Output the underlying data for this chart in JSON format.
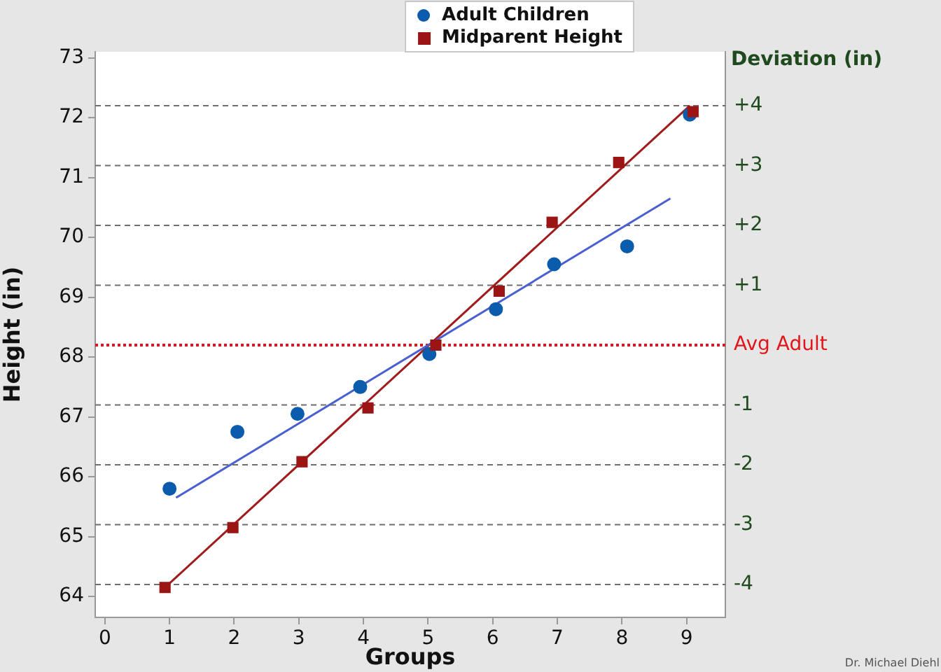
{
  "chart_data": {
    "type": "scatter",
    "xlabel": "Groups",
    "ylabel": "Height (in)",
    "y2label": "Deviation (in)",
    "xlim": [
      -0.15,
      9.6
    ],
    "xticks": [
      0,
      1,
      2,
      3,
      4,
      5,
      6,
      7,
      8,
      9
    ],
    "ylim": [
      63.65,
      73.1
    ],
    "yticks": [
      64,
      65,
      66,
      67,
      68,
      69,
      70,
      71,
      72,
      73
    ],
    "y2lim": [
      -4.55,
      4.9
    ],
    "y2ticks": [
      {
        "value": -4,
        "label": "-4"
      },
      {
        "value": -3,
        "label": "-3"
      },
      {
        "value": -2,
        "label": "-2"
      },
      {
        "value": -1,
        "label": "-1"
      },
      {
        "value": 0,
        "label": "Avg Adult"
      },
      {
        "value": 1,
        "label": "+1"
      },
      {
        "value": 2,
        "label": "+2"
      },
      {
        "value": 3,
        "label": "+3"
      },
      {
        "value": 4,
        "label": "+4"
      }
    ],
    "series": [
      {
        "name": "Adult Children",
        "marker": "circle",
        "color": "#0b5cad",
        "x": [
          1,
          2.05,
          2.98,
          3.95,
          5.02,
          6.05,
          6.95,
          8.08,
          9.05
        ],
        "values": [
          65.8,
          66.75,
          67.05,
          67.5,
          68.05,
          68.8,
          69.55,
          69.85,
          72.05
        ]
      },
      {
        "name": "Midparent Height",
        "marker": "square",
        "color": "#9b1515",
        "x": [
          0.93,
          1.98,
          3.05,
          4.07,
          5.12,
          6.1,
          6.92,
          7.95,
          9.1
        ],
        "values": [
          64.15,
          65.15,
          66.25,
          67.15,
          68.2,
          69.1,
          70.25,
          71.25,
          72.1
        ]
      },
      {
        "type": "line",
        "marker": "none",
        "color": "#4a5fd0",
        "x": [
          1.1,
          8.75
        ],
        "values": [
          65.65,
          70.65
        ]
      },
      {
        "type": "line",
        "marker": "none",
        "color": "#a01c1c",
        "x": [
          0.93,
          9.05
        ],
        "values": [
          64.15,
          72.2
        ]
      }
    ],
    "ref_lines": [
      {
        "axis": "y2",
        "value": -4,
        "color": "#6e6e6e",
        "line_style": "dashed"
      },
      {
        "axis": "y2",
        "value": -3,
        "color": "#6e6e6e",
        "line_style": "dashed"
      },
      {
        "axis": "y2",
        "value": -2,
        "color": "#6e6e6e",
        "line_style": "dashed"
      },
      {
        "axis": "y2",
        "value": -1,
        "color": "#6e6e6e",
        "line_style": "dashed"
      },
      {
        "axis": "y2",
        "value": 1,
        "color": "#6e6e6e",
        "line_style": "dashed"
      },
      {
        "axis": "y2",
        "value": 2,
        "color": "#6e6e6e",
        "line_style": "dashed"
      },
      {
        "axis": "y2",
        "value": 3,
        "color": "#6e6e6e",
        "line_style": "dashed"
      },
      {
        "axis": "y2",
        "value": 4,
        "color": "#6e6e6e",
        "line_style": "dashed"
      },
      {
        "axis": "y2",
        "value": 0,
        "color": "#e0161b",
        "line_style": "dotted"
      }
    ],
    "legend": "top",
    "grid": false,
    "annotations": [
      "Dr. Michael Diehl"
    ]
  }
}
